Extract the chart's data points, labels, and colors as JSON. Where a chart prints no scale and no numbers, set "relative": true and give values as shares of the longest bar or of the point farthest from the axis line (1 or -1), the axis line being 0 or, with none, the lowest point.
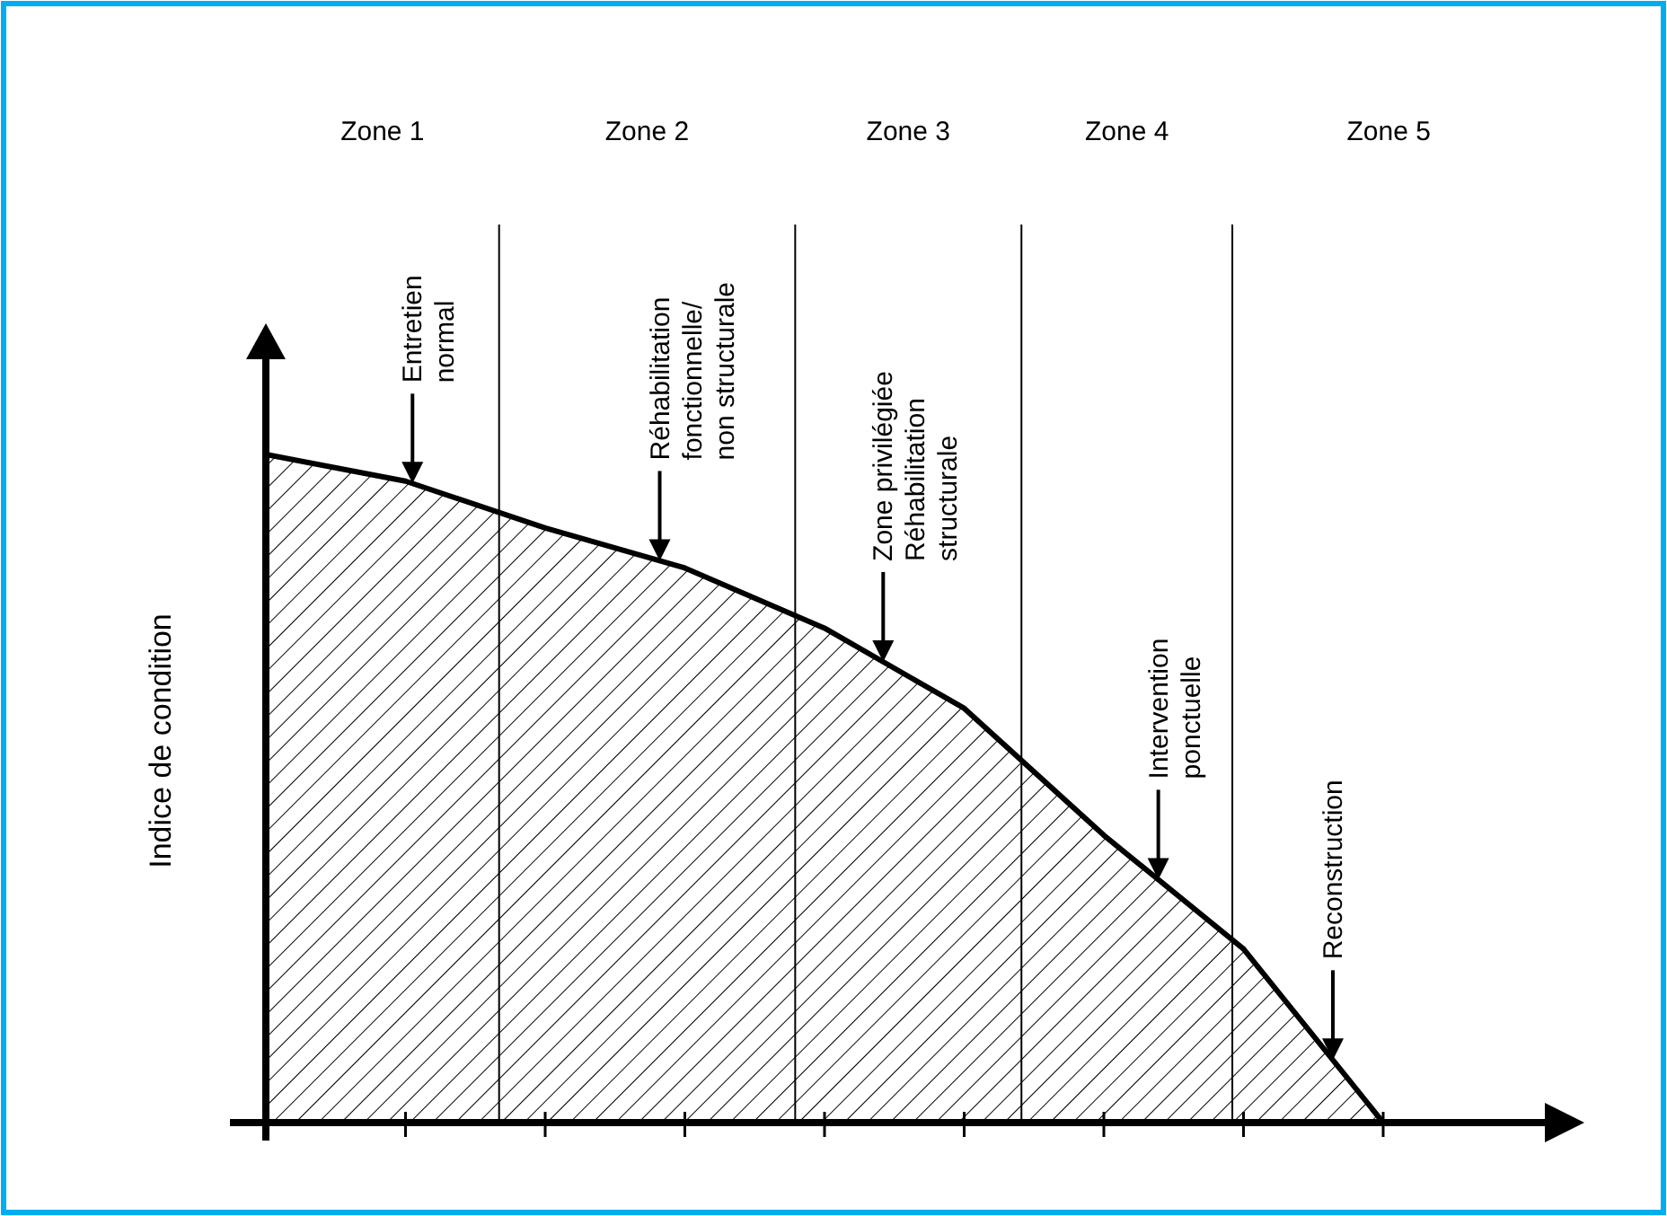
{
  "chart_data": {
    "type": "area",
    "relative": true,
    "ylabel": "Indice de condition",
    "color": "#000000",
    "categories": [
      null,
      null,
      null,
      null,
      null,
      null,
      null,
      null,
      null
    ],
    "values": [
      1,
      0.96,
      0.89,
      0.83,
      0.74,
      0.62,
      0.43,
      0.26,
      0
    ],
    "annotations": [
      "Zone 1",
      "Zone 2",
      "Zone 3",
      "Zone 4",
      "Zone 5",
      "Entretien\nnormal",
      "Réhabilitation\nfonctionnelle/\nnon structurale",
      "Zone privilégiée\nRéhabilitation\nstructurale",
      "Intervention\nponctuelle",
      "Reconstruction"
    ]
  }
}
